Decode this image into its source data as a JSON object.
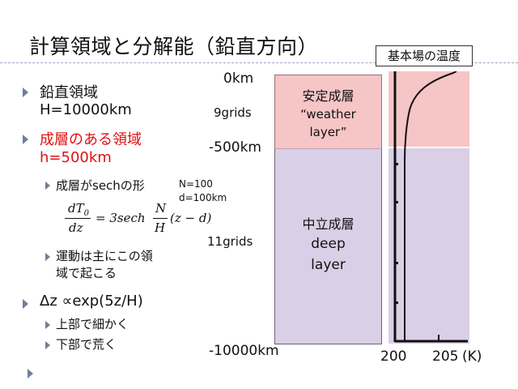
{
  "title": "計算領域と分解能（鉛直方向）",
  "ref_box": "基本場の温度",
  "bullets": {
    "b1_line1": "鉛直領域",
    "b1_line2": "H=10000km",
    "b2_line1": "成層のある領域",
    "b2_line2": "h=500km",
    "sub1": "成層がsechの形",
    "n_value": "N=100",
    "d_value": "d=100km",
    "sub2_line1": "運動は主にこの領",
    "sub2_line2": "域で起こる",
    "b3": "Δz ∝exp(5z/H)",
    "sub3": "上部で細かく",
    "sub4": "下部で荒く"
  },
  "equation": {
    "lhs_num": "dT",
    "lhs_num_sub": "0",
    "lhs_den": "dz",
    "eq": "= 3sech",
    "frac_num": "N",
    "frac_den": "H",
    "tail": "(z − d)"
  },
  "diagram": {
    "label_top": "0km",
    "label_mid": "-500km",
    "label_bot": "-10000km",
    "grids_top": "9grids",
    "grids_bot": "11grids",
    "upper_layer": [
      "安定成層",
      "“weather",
      "layer”"
    ],
    "lower_layer": [
      "中立成層",
      "deep",
      "layer"
    ],
    "temp_axis": [
      "200",
      "205",
      "(K)"
    ]
  },
  "colors": {
    "stable": "#f6c5c5",
    "neutral": "#d9cfe6",
    "red_text": "#e01010",
    "bullet": "#6f7f99"
  }
}
